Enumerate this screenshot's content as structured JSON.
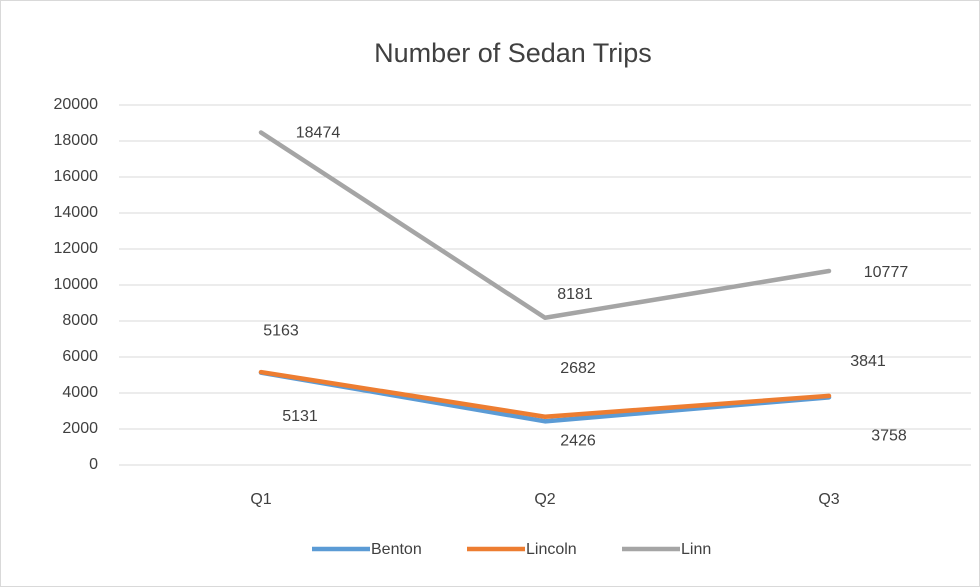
{
  "chart_data": {
    "type": "line",
    "title": "Number of Sedan Trips",
    "categories": [
      "Q1",
      "Q2",
      "Q3"
    ],
    "series": [
      {
        "name": "Benton",
        "color": "#5b9bd5",
        "values": [
          5131,
          2426,
          3758
        ]
      },
      {
        "name": "Lincoln",
        "color": "#ed7d31",
        "values": [
          5163,
          2682,
          3841
        ]
      },
      {
        "name": "Linn",
        "color": "#a5a5a5",
        "values": [
          18474,
          8181,
          10777
        ]
      }
    ],
    "ylim": [
      0,
      20000
    ],
    "yticks": [
      0,
      2000,
      4000,
      6000,
      8000,
      10000,
      12000,
      14000,
      16000,
      18000,
      20000
    ],
    "grid": true,
    "legend": "bottom"
  }
}
